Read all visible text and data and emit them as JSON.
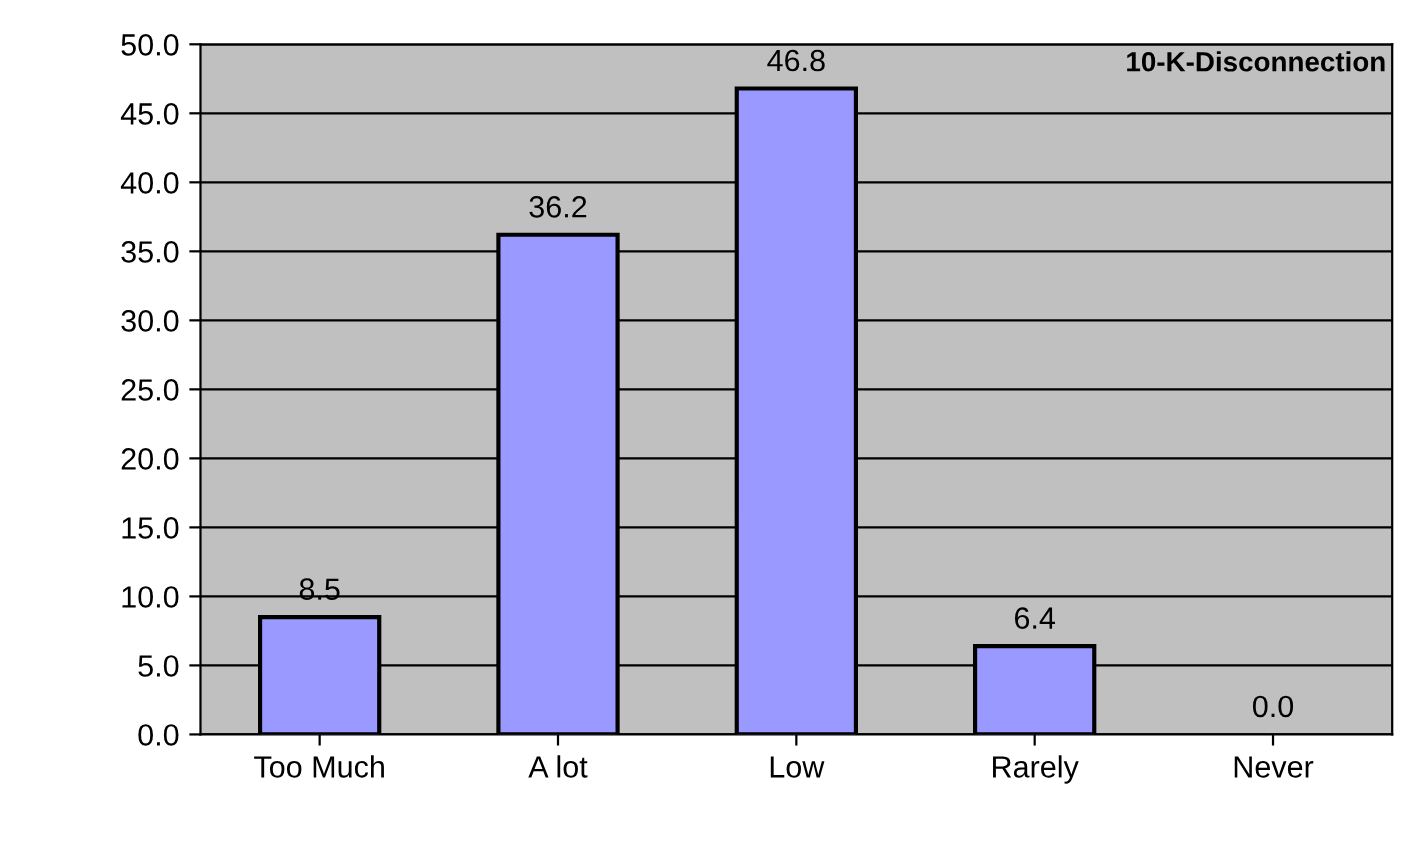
{
  "chart_data": {
    "type": "bar",
    "title": "10-K-Disconnection",
    "categories": [
      "Too Much",
      "A lot",
      "Low",
      "Rarely",
      "Never"
    ],
    "values": [
      8.5,
      36.2,
      46.8,
      6.4,
      0.0
    ],
    "value_labels": [
      "8.5",
      "36.2",
      "46.8",
      "6.4",
      "0.0"
    ],
    "color": "#9999ff",
    "ylim": [
      0,
      50
    ],
    "yticks": [
      {
        "value": 0,
        "label": "0.0"
      },
      {
        "value": 5,
        "label": "5.0"
      },
      {
        "value": 10,
        "label": "10.0"
      },
      {
        "value": 15,
        "label": "15.0"
      },
      {
        "value": 20,
        "label": "20.0"
      },
      {
        "value": 25,
        "label": "25.0"
      },
      {
        "value": 30,
        "label": "30.0"
      },
      {
        "value": 35,
        "label": "35.0"
      },
      {
        "value": 40,
        "label": "40.0"
      },
      {
        "value": 45,
        "label": "45.0"
      },
      {
        "value": 50,
        "label": "50.0"
      }
    ],
    "grid": "y"
  }
}
